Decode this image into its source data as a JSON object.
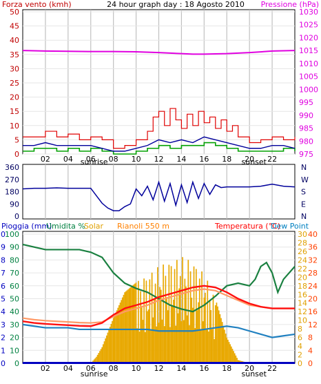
{
  "chart_data": [
    {
      "type": "line",
      "title": "24 hour graph day : 18 Agosto 2010",
      "left_axis_label": "Forza vento (kmh)",
      "right_axis_label": "Pressione (hPa)",
      "left_ticks": [
        "0",
        "5",
        "10",
        "15",
        "20",
        "25",
        "30",
        "35",
        "40",
        "45",
        "50"
      ],
      "left_ylim": [
        0,
        50
      ],
      "right_ticks": [
        "975",
        "980",
        "985",
        "990",
        "995",
        "1000",
        "1005",
        "1010",
        "1015",
        "1020",
        "1025",
        "1030"
      ],
      "right_ylim": [
        975,
        1030
      ],
      "x_ticks": [
        "02",
        "04",
        "06",
        "08",
        "10",
        "12",
        "14",
        "16",
        "18",
        "20",
        "22"
      ],
      "sun_labels": {
        "sunrise": "sunrise",
        "sunset": "sunset"
      },
      "sunrise_hour": 6.3,
      "sunset_hour": 20.4,
      "xlim": [
        0,
        24
      ],
      "colors": {
        "gust": "#e00000",
        "wind_avg": "#00009b",
        "wind_green": "#00a000",
        "pressure": "#e000e0",
        "left_axis": "#c00000",
        "right_axis": "#e000e0"
      },
      "series": [
        {
          "key": "pressure",
          "x": [
            0,
            2,
            4,
            6,
            8,
            10,
            12,
            14,
            15,
            16,
            18,
            20,
            22,
            24
          ],
          "values": [
            1015.0,
            1014.8,
            1014.7,
            1014.6,
            1014.6,
            1014.5,
            1014.2,
            1013.8,
            1013.6,
            1013.6,
            1013.8,
            1014.2,
            1014.8,
            1015.0
          ]
        },
        {
          "key": "gust",
          "x": [
            0,
            1,
            2,
            3,
            4,
            5,
            6,
            7,
            8,
            9,
            10,
            11,
            11.5,
            12,
            12.5,
            13,
            13.5,
            14,
            14.5,
            15,
            15.5,
            16,
            16.5,
            17,
            17.5,
            18,
            18.5,
            19,
            20,
            21,
            22,
            23,
            24
          ],
          "values": [
            6,
            6,
            8,
            6,
            7,
            5,
            6,
            5,
            2,
            3,
            5,
            8,
            13,
            15,
            10,
            16,
            12,
            9,
            14,
            10,
            15,
            11,
            13,
            9,
            12,
            8,
            10,
            6,
            4,
            5,
            6,
            5,
            6
          ]
        },
        {
          "key": "wind_avg",
          "x": [
            0,
            1,
            2,
            3,
            4,
            5,
            6,
            7,
            8,
            9,
            10,
            11,
            12,
            13,
            14,
            15,
            16,
            17,
            18,
            19,
            20,
            21,
            22,
            23,
            24
          ],
          "values": [
            3,
            3,
            4,
            3,
            3,
            3,
            3,
            2,
            1,
            1,
            2,
            3,
            5,
            4,
            5,
            4,
            6,
            5,
            4,
            3,
            2,
            2,
            3,
            3,
            2
          ]
        },
        {
          "key": "wind_green",
          "x": [
            0,
            1,
            2,
            3,
            4,
            5,
            6,
            7,
            8,
            9,
            10,
            11,
            12,
            13,
            14,
            15,
            16,
            17,
            18,
            19,
            20,
            21,
            22,
            23,
            24
          ],
          "values": [
            1,
            2,
            2,
            1,
            2,
            1,
            2,
            1,
            0,
            0,
            1,
            2,
            3,
            2,
            3,
            3,
            4,
            3,
            2,
            1,
            1,
            1,
            1,
            2,
            1
          ]
        }
      ]
    },
    {
      "type": "line",
      "title": "",
      "left_ticks": [
        "0",
        "90",
        "180",
        "270",
        "360"
      ],
      "left_ylim": [
        0,
        360
      ],
      "direction_labels": [
        "N",
        "W",
        "S",
        "E",
        "N"
      ],
      "series": [
        {
          "key": "direction",
          "x": [
            0,
            1,
            2,
            3,
            4,
            5,
            6,
            6.5,
            7,
            7.5,
            8,
            8.5,
            9,
            9.5,
            10,
            10.5,
            11,
            11.5,
            12,
            12.5,
            13,
            13.5,
            14,
            14.5,
            15,
            15.5,
            16,
            16.5,
            17,
            17.5,
            18,
            19,
            20,
            21,
            22,
            23,
            24
          ],
          "values": [
            200,
            205,
            205,
            208,
            205,
            205,
            205,
            150,
            95,
            60,
            40,
            40,
            70,
            90,
            200,
            150,
            220,
            120,
            250,
            110,
            240,
            80,
            230,
            100,
            250,
            130,
            240,
            160,
            230,
            210,
            215,
            215,
            215,
            220,
            235,
            220,
            215
          ]
        }
      ],
      "colors": {
        "direction": "#00009b"
      }
    },
    {
      "type": "line",
      "title": "",
      "legend": [
        "Pioggia (mm)",
        "Umidita %",
        "Solar",
        "Rianoli 550 m",
        "Temperatura (°C)",
        "Dew Point"
      ],
      "legend_colors": [
        "#0000c0",
        "#008040",
        "#e0a000",
        "#ff8000",
        "#ff0000",
        "#0080c0"
      ],
      "left_ticks_rain": [
        "0",
        "1",
        "2",
        "3",
        "4",
        "5",
        "6",
        "7",
        "8",
        "9",
        "10"
      ],
      "left_ticks_hum": [
        "0",
        "10",
        "20",
        "30",
        "40",
        "50",
        "60",
        "70",
        "80",
        "90",
        "100"
      ],
      "right_ticks_inner": [
        "0",
        "2",
        "4",
        "6",
        "8",
        "10",
        "12",
        "14",
        "16",
        "18",
        "20",
        "22",
        "24",
        "26",
        "28",
        "30"
      ],
      "right_ticks_outer": [
        "0",
        "4",
        "8",
        "12",
        "16",
        "20",
        "24",
        "28",
        "32",
        "36",
        "40"
      ],
      "left_ylim": [
        0,
        100
      ],
      "right_ylim": [
        0,
        40
      ],
      "xlim": [
        0,
        24
      ],
      "colors": {
        "solar": "#e8a800",
        "humidity": "#1a8040",
        "temperature": "#ff1010",
        "rianoli": "#ff9966",
        "dewpoint": "#2080c0",
        "rain": "#0000c0"
      },
      "series": [
        {
          "key": "humidity",
          "x": [
            0,
            1,
            2,
            3,
            4,
            5,
            6,
            7,
            8,
            9,
            10,
            11,
            12,
            13,
            14,
            15,
            16,
            17,
            18,
            19,
            20,
            20.5,
            21,
            21.5,
            22,
            22.5,
            23,
            24
          ],
          "values": [
            92,
            90,
            88,
            88,
            88,
            88,
            86,
            82,
            70,
            62,
            58,
            55,
            50,
            45,
            42,
            40,
            45,
            52,
            60,
            62,
            60,
            65,
            75,
            78,
            70,
            55,
            65,
            75
          ]
        },
        {
          "key": "temperature",
          "x": [
            0,
            1,
            2,
            3,
            4,
            5,
            6,
            7,
            8,
            9,
            10,
            11,
            12,
            13,
            14,
            15,
            16,
            17,
            18,
            19,
            20,
            21,
            22,
            23,
            24
          ],
          "values": [
            13.0,
            12.5,
            12.2,
            12.0,
            11.8,
            11.6,
            11.5,
            12.5,
            15.0,
            17.0,
            18.0,
            19.0,
            20.5,
            21.5,
            22.5,
            23.5,
            24.0,
            23.5,
            22.0,
            20.0,
            18.5,
            17.5,
            17.0,
            17.0,
            17.0
          ]
        },
        {
          "key": "rianoli",
          "x": [
            0,
            1,
            2,
            3,
            4,
            5,
            6,
            7,
            8,
            9,
            10,
            11,
            12,
            13,
            14,
            15,
            16,
            17,
            18,
            19,
            20,
            21,
            22,
            23,
            24
          ],
          "values": [
            14.0,
            13.5,
            13.2,
            13.0,
            12.8,
            12.6,
            12.5,
            12.8,
            14.5,
            16.0,
            17.0,
            18.0,
            19.5,
            20.5,
            21.5,
            22.5,
            23.0,
            22.5,
            21.0,
            19.5,
            18.0,
            17.5,
            17.0,
            17.0,
            17.0
          ]
        },
        {
          "key": "dewpoint",
          "x": [
            0,
            1,
            2,
            3,
            4,
            5,
            6,
            7,
            8,
            9,
            10,
            11,
            12,
            13,
            14,
            15,
            16,
            17,
            18,
            19,
            20,
            21,
            22,
            23,
            24
          ],
          "values": [
            12.0,
            11.5,
            11.0,
            11.0,
            11.0,
            10.5,
            10.5,
            10.5,
            10.5,
            10.5,
            10.5,
            10.5,
            10.0,
            10.0,
            10.0,
            10.0,
            10.5,
            11.0,
            11.5,
            11.0,
            10.0,
            9.0,
            8.0,
            8.5,
            9.0
          ]
        },
        {
          "key": "solar",
          "x": [
            0,
            1,
            2,
            3,
            4,
            5,
            6,
            6.5,
            7,
            8,
            9,
            10,
            11,
            12,
            13,
            14,
            15,
            16,
            17,
            18,
            19,
            20,
            24
          ],
          "values": [
            0,
            0,
            0,
            0,
            0,
            0,
            0,
            2,
            5,
            14,
            22,
            25,
            28,
            30,
            32,
            33,
            32,
            28,
            20,
            8,
            1,
            0,
            0
          ]
        },
        {
          "key": "rain",
          "x": [
            0,
            24
          ],
          "values": [
            0.1,
            0.1
          ]
        }
      ]
    }
  ]
}
